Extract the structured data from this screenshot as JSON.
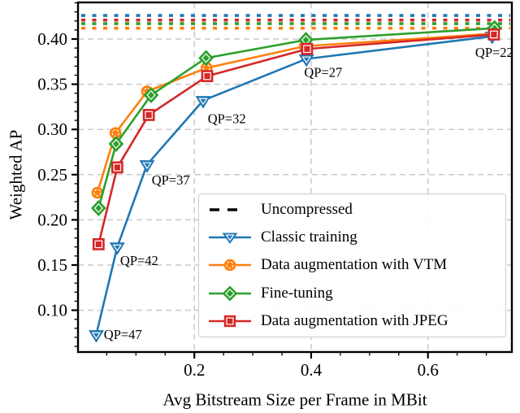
{
  "chart_data": {
    "type": "line",
    "title": "",
    "xlabel": "Avg Bitstream Size per Frame in MBit",
    "ylabel": "Weighted AP",
    "xlim": [
      0,
      0.744
    ],
    "ylim": [
      0.054,
      0.44
    ],
    "grid": true,
    "x_ticks": [
      0.2,
      0.4,
      0.6
    ],
    "x_tick_labels": [
      "0.2",
      "0.4",
      "0.6"
    ],
    "x_minor_step": 0.05,
    "y_ticks": [
      0.1,
      0.15,
      0.2,
      0.25,
      0.3,
      0.35,
      0.4
    ],
    "y_tick_labels": [
      "0.10",
      "0.15",
      "0.20",
      "0.25",
      "0.30",
      "0.35",
      "0.40"
    ],
    "y_minor_step": 0.01,
    "baselines": [
      {
        "series": "Classic training",
        "legend_label": "Uncompressed",
        "color": "#1f77b4",
        "value": 0.426
      },
      {
        "series": "Data augmentation with JPEG",
        "legend_label": "Uncompressed",
        "color": "#d62728",
        "value": 0.421
      },
      {
        "series": "Fine-tuning",
        "legend_label": "Uncompressed",
        "color": "#2ca02c",
        "value": 0.417
      },
      {
        "series": "Data augmentation with VTM",
        "legend_label": "Uncompressed",
        "color": "#ff7f0e",
        "value": 0.412
      }
    ],
    "series": [
      {
        "name": "Classic training",
        "color": "#1f77b4",
        "marker": "triangle-down",
        "x": [
          0.032,
          0.068,
          0.119,
          0.215,
          0.392,
          0.71
        ],
        "y": [
          0.073,
          0.17,
          0.261,
          0.332,
          0.378,
          0.403
        ]
      },
      {
        "name": "Data augmentation with VTM",
        "color": "#ff7f0e",
        "marker": "circle",
        "x": [
          0.034,
          0.065,
          0.119,
          0.221,
          0.389,
          0.713
        ],
        "y": [
          0.23,
          0.296,
          0.342,
          0.368,
          0.392,
          0.406
        ]
      },
      {
        "name": "Fine-tuning",
        "color": "#2ca02c",
        "marker": "diamond",
        "x": [
          0.036,
          0.066,
          0.126,
          0.22,
          0.391,
          0.714
        ],
        "y": [
          0.213,
          0.284,
          0.338,
          0.379,
          0.399,
          0.412
        ]
      },
      {
        "name": "Data augmentation with JPEG",
        "color": "#d62728",
        "marker": "square",
        "x": [
          0.036,
          0.068,
          0.122,
          0.222,
          0.393,
          0.713
        ],
        "y": [
          0.173,
          0.258,
          0.316,
          0.359,
          0.389,
          0.405
        ]
      }
    ],
    "annotations": [
      {
        "label": "QP=47",
        "x": 0.045,
        "y": 0.073
      },
      {
        "label": "QP=42",
        "x": 0.073,
        "y": 0.155
      },
      {
        "label": "QP=37",
        "x": 0.127,
        "y": 0.244
      },
      {
        "label": "QP=32",
        "x": 0.223,
        "y": 0.312
      },
      {
        "label": "QP=27",
        "x": 0.388,
        "y": 0.363
      },
      {
        "label": "QP=22",
        "x": 0.681,
        "y": 0.385
      }
    ],
    "legend": {
      "position": "lower right",
      "entries": [
        {
          "label": "Uncompressed",
          "color": "#000000",
          "sample": "dashed-line"
        },
        {
          "label": "Classic training",
          "color": "#1f77b4",
          "sample": "triangle-down"
        },
        {
          "label": "Data augmentation with VTM",
          "color": "#ff7f0e",
          "sample": "circle"
        },
        {
          "label": "Fine-tuning",
          "color": "#2ca02c",
          "sample": "diamond"
        },
        {
          "label": "Data augmentation with JPEG",
          "color": "#d62728",
          "sample": "square"
        }
      ]
    },
    "colors": {
      "grid": "#c9c9c9",
      "axis": "#000000",
      "background": "#ffffff"
    }
  }
}
